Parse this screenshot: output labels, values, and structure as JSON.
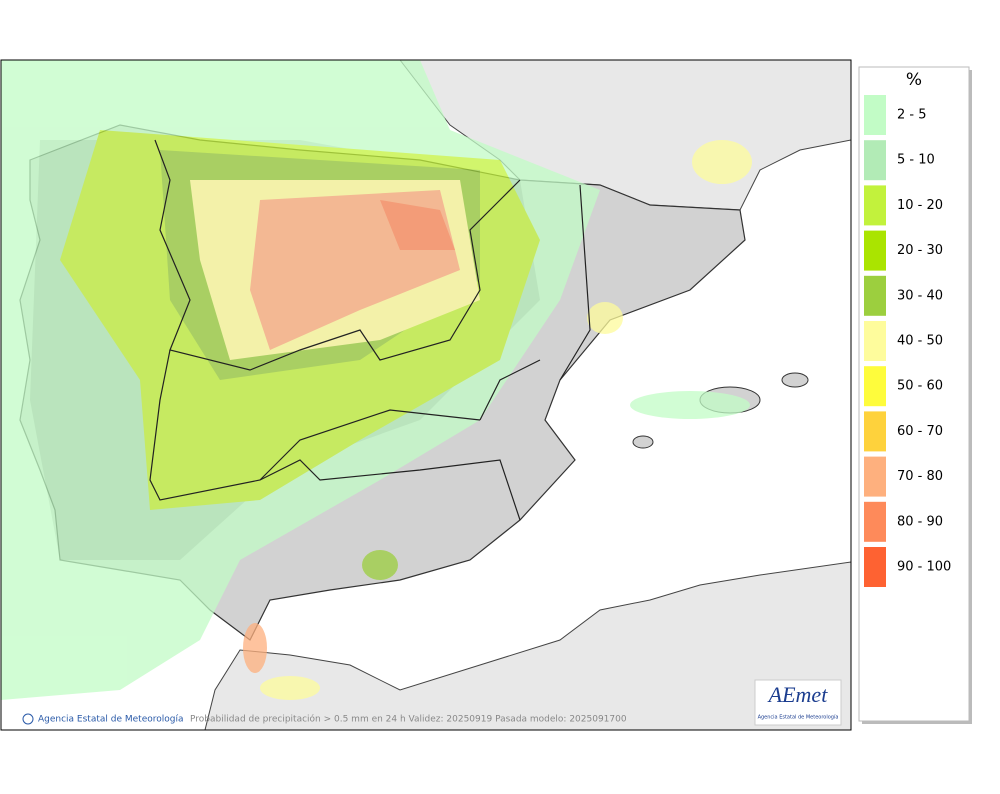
{
  "legend": {
    "unit": "%",
    "items": [
      {
        "label": "2 - 5",
        "color": "#c2fcc6"
      },
      {
        "label": "5 - 10",
        "color": "#b2ebb6"
      },
      {
        "label": "10 - 20",
        "color": "#c2f23c"
      },
      {
        "label": "20 - 30",
        "color": "#aae400"
      },
      {
        "label": "30 - 40",
        "color": "#9ccf3e"
      },
      {
        "label": "40 - 50",
        "color": "#fefc9c"
      },
      {
        "label": "50 - 60",
        "color": "#fefc3c"
      },
      {
        "label": "60 - 70",
        "color": "#fed23c"
      },
      {
        "label": "70 - 80",
        "color": "#feb07e"
      },
      {
        "label": "80 - 90",
        "color": "#fe8a5a"
      },
      {
        "label": "90 - 100",
        "color": "#fe6232"
      }
    ]
  },
  "footer": {
    "credit": "Agencia Estatal de Meteorología",
    "caption": "Probabilidad de precipitación > 0.5 mm en 24 h Validez: 20250919 Pasada modelo: 2025091700"
  },
  "logo": {
    "name": "AEmet",
    "subtitle": "Agencia Estatal de Meteorología"
  }
}
